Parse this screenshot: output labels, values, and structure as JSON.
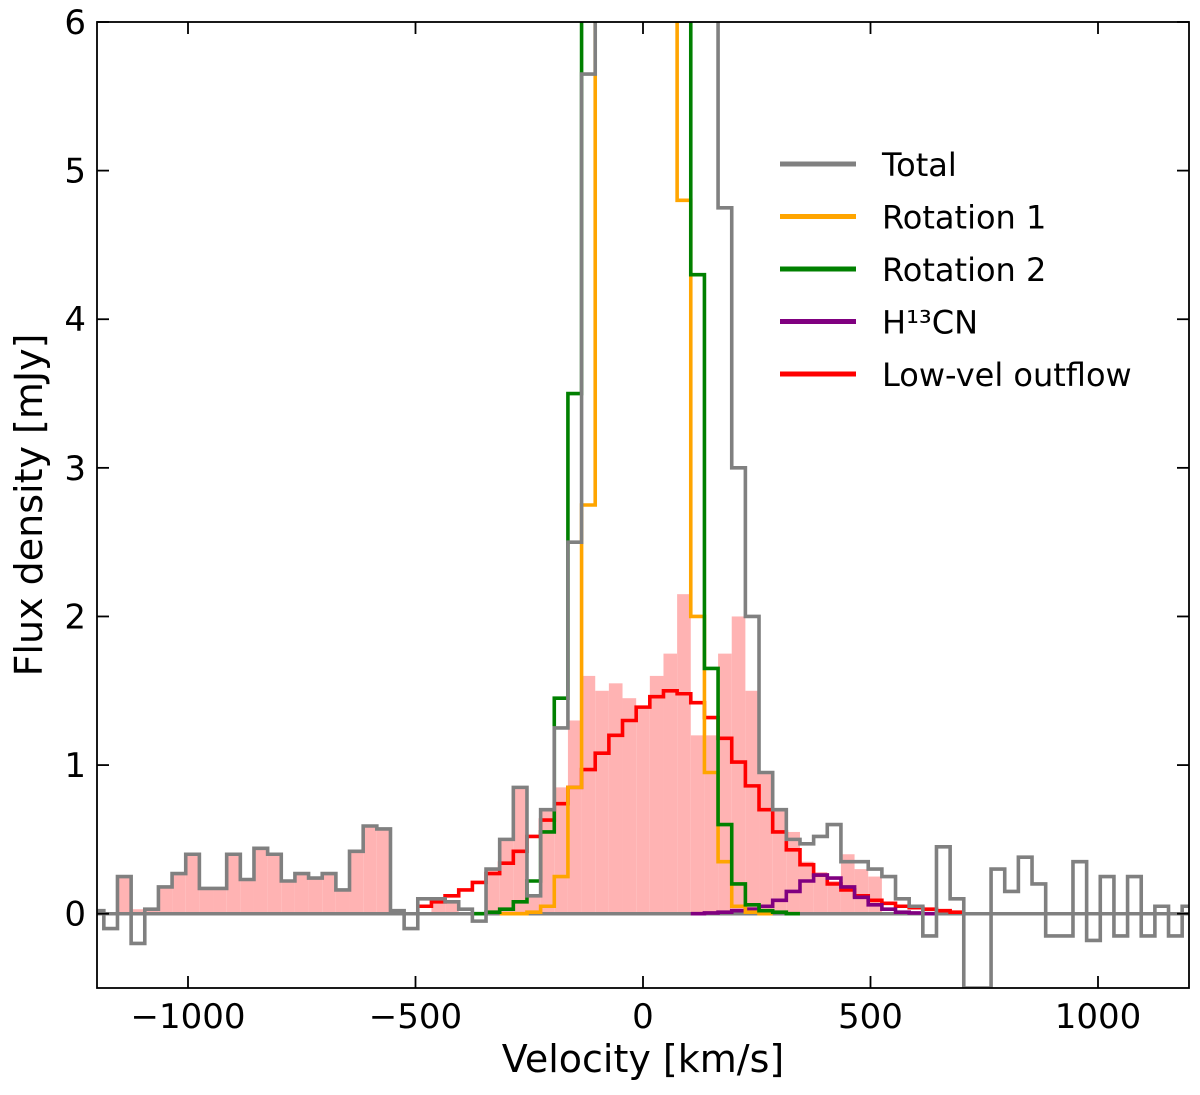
{
  "chart_data": {
    "type": "line",
    "drawstyle": "steps-mid",
    "xlabel": "Velocity [km/s]",
    "ylabel": "Flux density [mJy]",
    "xlim": [
      -1200,
      1200
    ],
    "ylim": [
      -0.5,
      6
    ],
    "xticks": [
      -1000,
      -500,
      0,
      500,
      1000
    ],
    "xtick_labels": [
      "−1000",
      "−500",
      "0",
      "500",
      "1000"
    ],
    "yticks": [
      0,
      1,
      2,
      3,
      4,
      5,
      6
    ],
    "ytick_labels": [
      "0",
      "1",
      "2",
      "3",
      "4",
      "5",
      "6"
    ],
    "grid": false,
    "legend_position": "top-right",
    "zero_line_color": "#808080",
    "series": [
      {
        "name": "Total",
        "color": "#808080",
        "style": "steps",
        "x": [
          -1200,
          -1170,
          -1140,
          -1110,
          -1080,
          -1050,
          -1020,
          -990,
          -960,
          -930,
          -900,
          -870,
          -840,
          -810,
          -780,
          -750,
          -720,
          -690,
          -660,
          -630,
          -600,
          -570,
          -540,
          -510,
          -480,
          -450,
          -420,
          -390,
          -360,
          -330,
          -300,
          -270,
          -240,
          -210,
          -180,
          -150,
          -120,
          -90,
          -60,
          -30,
          0,
          30,
          60,
          90,
          120,
          150,
          180,
          210,
          240,
          270,
          300,
          330,
          360,
          390,
          420,
          450,
          480,
          510,
          540,
          570,
          600,
          630,
          660,
          690,
          720,
          750,
          780,
          810,
          840,
          870,
          900,
          930,
          960,
          990,
          1020,
          1050,
          1080,
          1110,
          1140,
          1170,
          1200
        ],
        "y": [
          0.02,
          -0.1,
          0.25,
          -0.2,
          0.03,
          0.18,
          0.27,
          0.4,
          0.17,
          0.17,
          0.4,
          0.23,
          0.44,
          0.4,
          0.22,
          0.27,
          0.24,
          0.27,
          0.16,
          0.42,
          0.59,
          0.57,
          0.02,
          -0.1,
          0.1,
          0.1,
          0.08,
          0.03,
          -0.05,
          0.3,
          0.5,
          0.85,
          0.12,
          0.7,
          1.25,
          2.5,
          5.65,
          6.5,
          6.5,
          6.5,
          6.5,
          6.5,
          6.5,
          6.5,
          6.5,
          6.5,
          4.75,
          3.0,
          2.0,
          0.95,
          0.7,
          0.5,
          0.47,
          0.52,
          0.6,
          0.35,
          0.35,
          0.3,
          0.25,
          0.1,
          0.05,
          -0.15,
          0.45,
          0.1,
          -0.5,
          -0.5,
          0.3,
          0.15,
          0.38,
          0.2,
          -0.15,
          -0.15,
          0.35,
          -0.18,
          0.25,
          -0.15,
          0.25,
          -0.15,
          0.05,
          -0.15,
          0.05
        ]
      },
      {
        "name": "Rotation 1",
        "color": "#ffa500",
        "style": "steps",
        "x": [
          -300,
          -270,
          -240,
          -210,
          -180,
          -150,
          -120,
          -90,
          -60,
          -30,
          0,
          30,
          60,
          90,
          120,
          150,
          180,
          210,
          240,
          270
        ],
        "y": [
          0,
          0,
          0.01,
          0.05,
          0.25,
          0.85,
          2.75,
          6.5,
          6.5,
          6.5,
          6.5,
          6.5,
          6.5,
          4.8,
          2.0,
          0.95,
          0.35,
          0.05,
          0.01,
          0
        ]
      },
      {
        "name": "Rotation 2",
        "color": "#008000",
        "style": "steps",
        "x": [
          -360,
          -330,
          -300,
          -270,
          -240,
          -210,
          -180,
          -150,
          -120,
          -90,
          -60,
          -30,
          0,
          30,
          60,
          90,
          120,
          150,
          180,
          210,
          240,
          270,
          300,
          330
        ],
        "y": [
          0,
          0.01,
          0.03,
          0.08,
          0.22,
          0.55,
          1.45,
          3.5,
          6.5,
          6.5,
          6.5,
          6.5,
          6.5,
          6.5,
          6.5,
          6.5,
          4.3,
          1.65,
          0.6,
          0.2,
          0.06,
          0.02,
          0.01,
          0
        ]
      },
      {
        "name": "H¹³CN",
        "color": "#800080",
        "style": "steps",
        "x": [
          120,
          150,
          180,
          210,
          240,
          270,
          300,
          330,
          360,
          390,
          420,
          450,
          480,
          510,
          540,
          570,
          600,
          630
        ],
        "y": [
          0,
          0.005,
          0.01,
          0.02,
          0.03,
          0.05,
          0.09,
          0.15,
          0.22,
          0.26,
          0.24,
          0.18,
          0.11,
          0.06,
          0.03,
          0.01,
          0.005,
          0
        ]
      },
      {
        "name": "Low-vel outflow",
        "color": "#ff0000",
        "style": "steps",
        "x": [
          -480,
          -450,
          -420,
          -390,
          -360,
          -330,
          -300,
          -270,
          -240,
          -210,
          -180,
          -150,
          -120,
          -90,
          -60,
          -30,
          0,
          30,
          60,
          90,
          120,
          150,
          180,
          210,
          240,
          270,
          300,
          330,
          360,
          390,
          420,
          450,
          480,
          510,
          540,
          570,
          600,
          630,
          660,
          690
        ],
        "y": [
          0.05,
          0.08,
          0.12,
          0.16,
          0.21,
          0.27,
          0.34,
          0.42,
          0.52,
          0.63,
          0.74,
          0.85,
          0.97,
          1.08,
          1.2,
          1.3,
          1.39,
          1.46,
          1.5,
          1.48,
          1.42,
          1.32,
          1.18,
          1.02,
          0.86,
          0.7,
          0.55,
          0.43,
          0.33,
          0.26,
          0.2,
          0.16,
          0.12,
          0.09,
          0.07,
          0.05,
          0.04,
          0.03,
          0.02,
          0.01
        ]
      }
    ],
    "bars": {
      "color": "#ffb3b3",
      "x": [
        -1140,
        -1110,
        -1080,
        -1050,
        -1020,
        -990,
        -960,
        -930,
        -900,
        -870,
        -840,
        -810,
        -780,
        -750,
        -720,
        -690,
        -660,
        -630,
        -600,
        -570,
        -450,
        -420,
        -330,
        -300,
        -270,
        -240,
        -210,
        -180,
        -150,
        -120,
        -90,
        -60,
        -30,
        0,
        30,
        60,
        90,
        120,
        150,
        180,
        210,
        240,
        270,
        300,
        330,
        360,
        390,
        420,
        450,
        480,
        510
      ],
      "y": [
        0.25,
        0.03,
        0.03,
        0.18,
        0.27,
        0.4,
        0.17,
        0.17,
        0.4,
        0.23,
        0.44,
        0.4,
        0.22,
        0.27,
        0.24,
        0.27,
        0.16,
        0.42,
        0.59,
        0.57,
        0.1,
        0.08,
        0.3,
        0.5,
        0.85,
        0.12,
        0.7,
        0.85,
        1.3,
        1.6,
        1.5,
        1.55,
        1.45,
        1.4,
        1.6,
        1.75,
        2.15,
        1.2,
        1.2,
        1.75,
        2.0,
        1.5,
        0.95,
        0.7,
        0.55,
        0.35,
        0.28,
        0.22,
        0.4,
        0.3,
        0.25
      ]
    }
  }
}
